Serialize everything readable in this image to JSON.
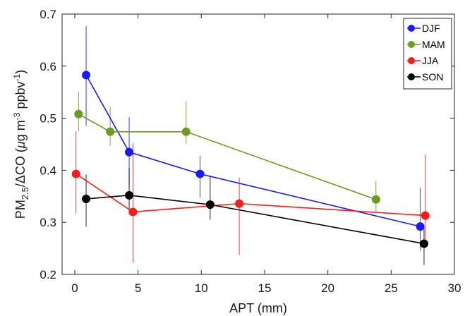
{
  "chart_data": {
    "type": "line",
    "xlabel": "APT (mm)",
    "ylabel": {
      "prefix": "PM",
      "sub": "2.5",
      "mid": "/ΔCO (",
      "mu": "μ",
      "unit1": "g m",
      "sup1": "-3",
      "unit2": " ppbv",
      "sup2": "-1",
      "suffix": ")"
    },
    "xlim": [
      -1,
      30
    ],
    "ylim": [
      0.2,
      0.7
    ],
    "xticks": [
      0,
      5,
      10,
      15,
      20,
      25,
      30
    ],
    "yticks": [
      0.2,
      0.3,
      0.4,
      0.5,
      0.6,
      0.7
    ],
    "xtick_labels": [
      "0",
      "5",
      "10",
      "15",
      "20",
      "25",
      "30"
    ],
    "ytick_labels": [
      "0.2",
      "0.3",
      "0.4",
      "0.5",
      "0.6",
      "0.7"
    ],
    "grid": false,
    "legend_position": "top-right",
    "series": [
      {
        "name": "DJF",
        "color": "#1a1aff",
        "x": [
          0.9,
          4.3,
          9.9,
          27.3
        ],
        "y": [
          0.583,
          0.435,
          0.393,
          0.292
        ],
        "err_low": [
          0.485,
          0.367,
          0.347,
          0.245
        ],
        "err_high": [
          0.677,
          0.502,
          0.428,
          0.366
        ]
      },
      {
        "name": "MAM",
        "color": "#6b9c1e",
        "x": [
          0.3,
          2.8,
          8.8,
          23.8
        ],
        "y": [
          0.508,
          0.474,
          0.474,
          0.344
        ],
        "err_low": [
          0.475,
          0.447,
          0.45,
          0.321
        ],
        "err_high": [
          0.551,
          0.523,
          0.533,
          0.38
        ]
      },
      {
        "name": "JJA",
        "color": "#ff1a1a",
        "x": [
          0.1,
          4.6,
          13.0,
          27.7
        ],
        "y": [
          0.393,
          0.32,
          0.336,
          0.313
        ],
        "err_low": [
          0.317,
          0.222,
          0.237,
          0.25
        ],
        "err_high": [
          0.475,
          0.452,
          0.386,
          0.43
        ]
      },
      {
        "name": "SON",
        "color": "#000000",
        "x": [
          0.9,
          4.3,
          10.7,
          27.6
        ],
        "y": [
          0.345,
          0.352,
          0.334,
          0.259
        ],
        "err_low": [
          0.292,
          0.316,
          0.305,
          0.218
        ],
        "err_high": [
          0.392,
          0.404,
          0.39,
          0.29
        ]
      }
    ]
  }
}
